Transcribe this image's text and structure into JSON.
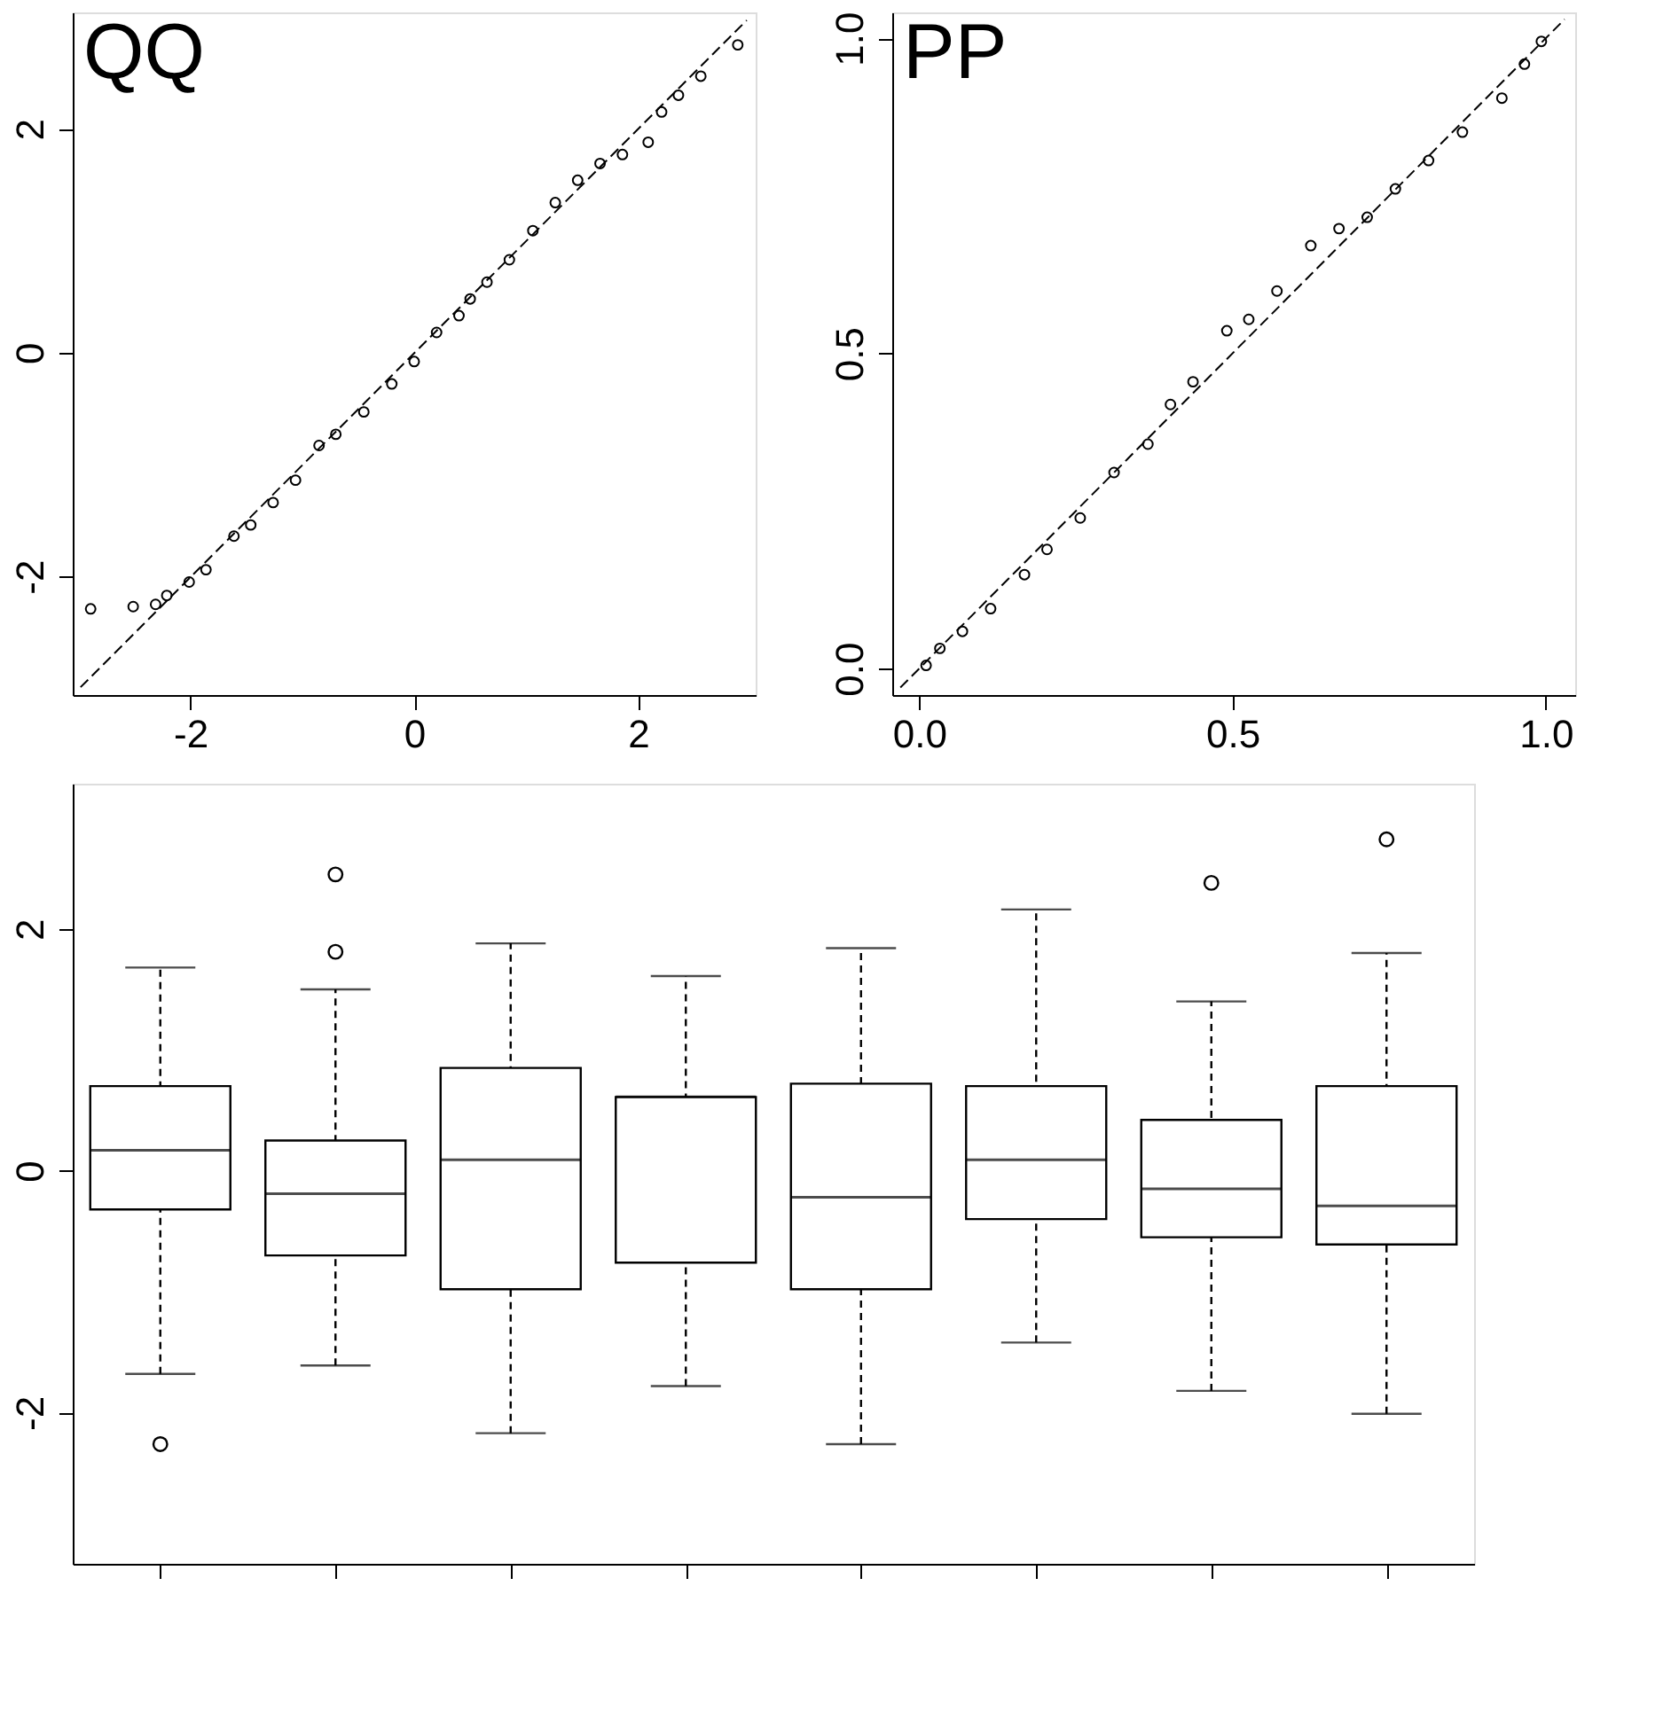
{
  "chart_data": [
    {
      "type": "scatter",
      "title": "QQ",
      "grid": false,
      "xlim": [
        -3.05,
        3.05
      ],
      "ylim": [
        -3.06,
        3.04
      ],
      "xticks": [
        -2,
        0,
        2
      ],
      "yticks": [
        -2,
        0,
        2
      ],
      "series": [
        {
          "type": "scatter",
          "marker": "circle",
          "color": "#000000",
          "x": [
            -2.89,
            -2.51,
            -2.31,
            -2.21,
            -2.01,
            -1.86,
            -1.61,
            -1.46,
            -1.26,
            -1.06,
            -0.85,
            -0.7,
            -0.45,
            -0.2,
            0,
            0.2,
            0.4,
            0.5,
            0.65,
            0.85,
            1.06,
            1.26,
            1.46,
            1.66,
            1.86,
            2.09,
            2.21,
            2.36,
            2.56,
            2.89
          ],
          "values": [
            -2.29,
            -2.27,
            -2.25,
            -2.17,
            -2.05,
            -1.94,
            -1.64,
            -1.54,
            -1.34,
            -1.14,
            -0.83,
            -0.73,
            -0.53,
            -0.28,
            -0.08,
            0.18,
            0.33,
            0.48,
            0.63,
            0.83,
            1.09,
            1.34,
            1.54,
            1.69,
            1.77,
            1.88,
            2.15,
            2.3,
            2.47,
            2.75
          ]
        },
        {
          "type": "line",
          "marker": "none",
          "color": "#000000",
          "line_style": "dashed",
          "x": [
            -2.98,
            2.97
          ],
          "values": [
            -2.99,
            2.97
          ]
        }
      ]
    },
    {
      "type": "scatter",
      "title": "PP",
      "grid": false,
      "xlim": [
        -0.043,
        1.047
      ],
      "ylim": [
        -0.042,
        1.041
      ],
      "xticks": [
        {
          "value": 0,
          "label": "0.0"
        },
        0.5,
        {
          "value": 1,
          "label": "1.0"
        }
      ],
      "yticks": [
        {
          "value": 0,
          "label": "0.0"
        },
        0.5,
        {
          "value": 1,
          "label": "1.0"
        }
      ],
      "series": [
        {
          "type": "scatter",
          "marker": "circle",
          "color": "#000000",
          "x": [
            0.011,
            0.033,
            0.069,
            0.114,
            0.168,
            0.204,
            0.257,
            0.311,
            0.365,
            0.401,
            0.437,
            0.491,
            0.526,
            0.571,
            0.625,
            0.67,
            0.715,
            0.76,
            0.813,
            0.867,
            0.93,
            0.966,
            0.993
          ],
          "values": [
            0.005,
            0.032,
            0.059,
            0.095,
            0.149,
            0.189,
            0.239,
            0.311,
            0.356,
            0.419,
            0.455,
            0.536,
            0.554,
            0.599,
            0.671,
            0.698,
            0.716,
            0.761,
            0.806,
            0.851,
            0.905,
            0.959,
            0.995
          ]
        },
        {
          "type": "line",
          "marker": "none",
          "color": "#000000",
          "line_style": "dashed",
          "x": [
            -0.03,
            1.03
          ],
          "values": [
            -0.03,
            1.03
          ]
        }
      ]
    },
    {
      "type": "box",
      "categories": [
        null,
        null,
        null,
        null,
        null,
        null,
        null,
        null
      ],
      "grid": false,
      "ylim": [
        -3.25,
        3.2
      ],
      "yticks": [
        -2,
        0,
        2
      ],
      "tick_labels": "y",
      "series": [
        {
          "color": "#000000",
          "boxes": [
            {
              "low": -1.68,
              "q1": -0.32,
              "median": 0.17,
              "q3": 0.7,
              "high": 1.68,
              "outliers": [
                -2.26
              ]
            },
            {
              "low": -1.61,
              "q1": -0.7,
              "median": -0.19,
              "q3": 0.25,
              "high": 1.5,
              "outliers": [
                1.81,
                2.45
              ]
            },
            {
              "low": -2.17,
              "q1": -0.98,
              "median": 0.09,
              "q3": 0.85,
              "high": 1.88
            },
            {
              "low": -1.78,
              "q1": -0.76,
              "median": 0.61,
              "q3": 0.61,
              "high": 1.61
            },
            {
              "low": -2.26,
              "q1": -0.98,
              "median": -0.22,
              "q3": 0.72,
              "high": 1.84
            },
            {
              "low": -1.42,
              "q1": -0.4,
              "median": 0.09,
              "q3": 0.7,
              "high": 2.16
            },
            {
              "low": -1.82,
              "q1": -0.55,
              "median": -0.15,
              "q3": 0.42,
              "high": 1.4,
              "outliers": [
                2.38
              ]
            },
            {
              "low": -2.01,
              "q1": -0.61,
              "median": -0.29,
              "q3": 0.7,
              "high": 1.8,
              "outliers": [
                2.74
              ]
            }
          ]
        }
      ]
    }
  ]
}
